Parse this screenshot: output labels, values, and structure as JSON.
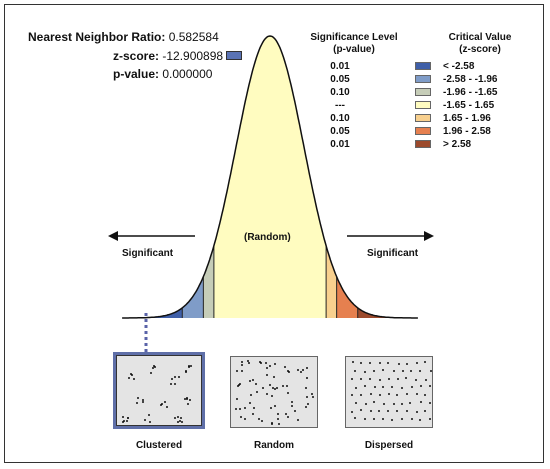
{
  "stats": {
    "ratio_label": "Nearest Neighbor Ratio:",
    "ratio_value": "0.582584",
    "z_label": "z-score:",
    "z_value": "-12.900898",
    "p_label": "p-value:",
    "p_value": "0.000000",
    "z_marker_color": "#5a73b5"
  },
  "legend": {
    "col1_head": [
      "Significance Level",
      "(p-value)"
    ],
    "col2_head": [
      "Critical Value",
      "(z-score)"
    ],
    "rows": [
      {
        "level": "0.01",
        "range": "< -2.58",
        "color": "#3f5fa8"
      },
      {
        "level": "0.05",
        "range": "-2.58 - -1.96",
        "color": "#7f9cc8"
      },
      {
        "level": "0.10",
        "range": "-1.96 - -1.65",
        "color": "#c6cdb8"
      },
      {
        "level": "---",
        "range": "-1.65 - 1.65",
        "color": "#fffcc0"
      },
      {
        "level": "0.10",
        "range": "1.65 - 1.96",
        "color": "#f8d08e"
      },
      {
        "level": "0.05",
        "range": "1.96 - 2.58",
        "color": "#e6804f"
      },
      {
        "level": "0.01",
        "range": "> 2.58",
        "color": "#9c4a2c"
      }
    ]
  },
  "curve": {
    "center_label": "(Random)",
    "left_label": "Significant",
    "right_label": "Significant",
    "z_breaks": [
      -2.58,
      -1.96,
      -1.65,
      1.65,
      1.96,
      2.58
    ]
  },
  "patterns": [
    {
      "label": "Clustered",
      "selected": true
    },
    {
      "label": "Random",
      "selected": false
    },
    {
      "label": "Dispersed",
      "selected": false
    }
  ]
}
